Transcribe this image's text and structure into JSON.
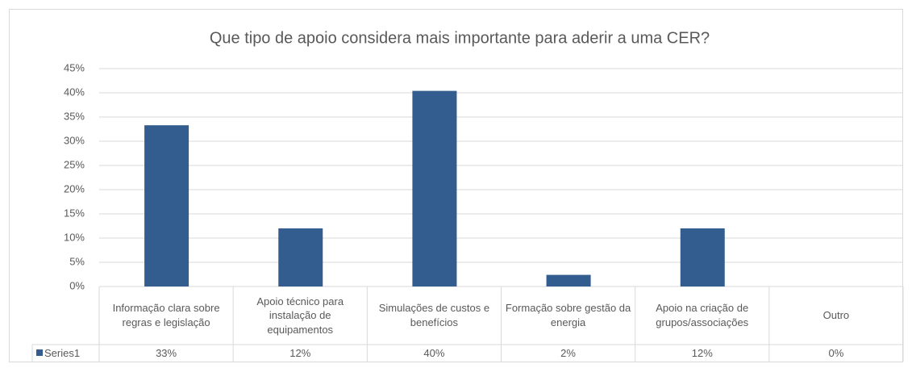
{
  "chart_data": {
    "type": "bar",
    "title": "Que tipo de apoio considera mais importante para aderir a uma CER?",
    "categories": [
      "Informação clara sobre regras e legislação",
      "Apoio técnico para instalação de equipamentos",
      "Simulações de custos e benefícios",
      "Formação sobre gestão da energia",
      "Apoio na criação de grupos/associações",
      "Outro"
    ],
    "series": [
      {
        "name": "Series1",
        "color": "#325d8e",
        "values": [
          33.3,
          12,
          40.4,
          2.4,
          12,
          0
        ],
        "value_labels": [
          "33%",
          "12%",
          "40%",
          "2%",
          "12%",
          "0%"
        ]
      }
    ],
    "ylim": [
      0,
      45
    ],
    "yticks": [
      {
        "value": 0,
        "label": "0%"
      },
      {
        "value": 5,
        "label": "5%"
      },
      {
        "value": 10,
        "label": "10%"
      },
      {
        "value": 15,
        "label": "15%"
      },
      {
        "value": 20,
        "label": "20%"
      },
      {
        "value": 25,
        "label": "25%"
      },
      {
        "value": 30,
        "label": "30%"
      },
      {
        "value": 35,
        "label": "35%"
      },
      {
        "value": 40,
        "label": "40%"
      },
      {
        "value": 45,
        "label": "45%"
      }
    ],
    "grid": true
  }
}
